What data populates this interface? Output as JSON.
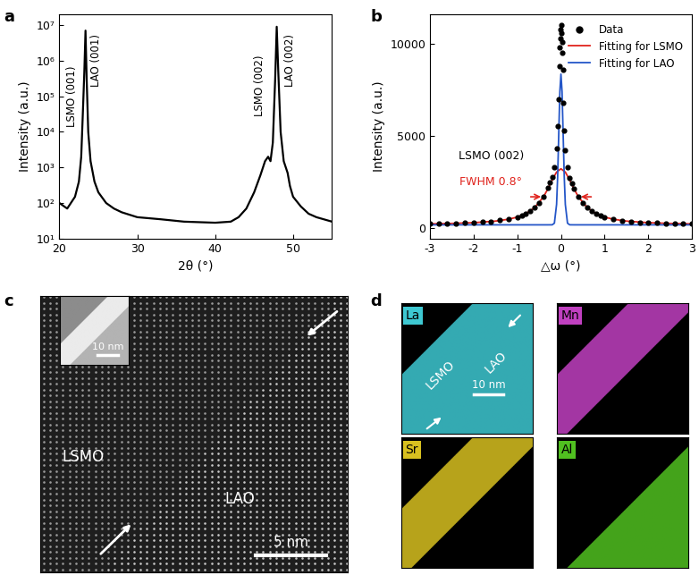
{
  "chart_data": [
    {
      "title": "a",
      "type": "line",
      "color": "#000000",
      "x_label": "2θ (°)",
      "y_label": "Intensity (a.u.)",
      "log": "y",
      "x": [
        20,
        21,
        22,
        22.5,
        22.8,
        23.0,
        23.2,
        23.35,
        23.5,
        23.7,
        24,
        24.5,
        25,
        26,
        27,
        28,
        30,
        33,
        36,
        40,
        42,
        43,
        44,
        45,
        45.8,
        46.4,
        46.8,
        47.1,
        47.4,
        47.7,
        47.9,
        48.1,
        48.4,
        48.8,
        49.3,
        49.6,
        50,
        51,
        52,
        53,
        55
      ],
      "values": [
        100,
        70,
        150,
        400,
        2000,
        30000,
        500000,
        7000000,
        300000,
        10000,
        1500,
        400,
        200,
        100,
        70,
        55,
        40,
        35,
        30,
        28,
        30,
        40,
        70,
        200,
        600,
        1500,
        2000,
        1500,
        5000,
        300000,
        9000000,
        500000,
        10000,
        1500,
        700,
        300,
        150,
        80,
        50,
        40,
        30
      ],
      "xlim": [
        20,
        55
      ],
      "xticks": [
        20,
        30,
        40,
        50
      ],
      "ylim": [
        10,
        20000000
      ],
      "yticks": [
        {
          "value": 10,
          "label": "10¹"
        },
        {
          "value": 100,
          "label": "10²"
        },
        {
          "value": 1000,
          "label": "10³"
        },
        {
          "value": 10000,
          "label": "10⁴"
        },
        {
          "value": 100000,
          "label": "10⁵"
        },
        {
          "value": 1000000,
          "label": "10⁶"
        },
        {
          "value": 10000000,
          "label": "10⁷"
        }
      ],
      "annotations": [
        {
          "text": "LSMO (001)",
          "x": 21.6,
          "y": 100000
        },
        {
          "text": "LAO (001)",
          "x": 24.7,
          "y": 1000000
        },
        {
          "text": "LSMO (002)",
          "x": 45.7,
          "y": 200000
        },
        {
          "text": "LAO (002)",
          "x": 49.6,
          "y": 1000000
        }
      ]
    },
    {
      "title": "b",
      "type": "scatter",
      "x_label": "△ω (°)",
      "y_label": "Intensity (a.u.)",
      "legend": "upper right",
      "xlim": [
        -3,
        3
      ],
      "xticks": [
        -3,
        -2,
        -1,
        0,
        1,
        2,
        3
      ],
      "ylim": [
        -600,
        11600
      ],
      "yticks": [
        0,
        5000,
        10000
      ],
      "series": [
        {
          "name": "Data",
          "type": "scatter",
          "color": "#000000",
          "marker": "o",
          "x": [
            -3,
            -2.8,
            -2.6,
            -2.4,
            -2.2,
            -2.0,
            -1.8,
            -1.6,
            -1.4,
            -1.2,
            -1.0,
            -0.9,
            -0.8,
            -0.7,
            -0.6,
            -0.5,
            -0.4,
            -0.3,
            -0.25,
            -0.2,
            -0.15,
            -0.1,
            -0.08,
            -0.06,
            -0.04,
            -0.03,
            -0.02,
            -0.01,
            0,
            0.01,
            0.02,
            0.03,
            0.04,
            0.06,
            0.08,
            0.1,
            0.15,
            0.2,
            0.25,
            0.3,
            0.4,
            0.5,
            0.6,
            0.7,
            0.8,
            0.9,
            1.0,
            1.2,
            1.4,
            1.6,
            1.8,
            2.0,
            2.2,
            2.4,
            2.6,
            2.8,
            3.0
          ],
          "values": [
            200,
            210,
            220,
            235,
            250,
            270,
            300,
            340,
            390,
            460,
            580,
            660,
            760,
            900,
            1090,
            1350,
            1700,
            2150,
            2450,
            2750,
            3300,
            4300,
            5500,
            7000,
            8800,
            9800,
            10300,
            10800,
            11000,
            10600,
            10100,
            9500,
            8600,
            6800,
            5300,
            4200,
            3300,
            2700,
            2400,
            2100,
            1680,
            1330,
            1080,
            890,
            750,
            650,
            570,
            450,
            380,
            330,
            290,
            265,
            245,
            228,
            215,
            205,
            198
          ]
        },
        {
          "name": "Fitting for LSMO",
          "type": "line",
          "color": "#e0231c",
          "line_style": "solid",
          "x": [
            -3,
            -2.5,
            -2,
            -1.5,
            -1.2,
            -1,
            -0.8,
            -0.6,
            -0.4,
            -0.3,
            -0.2,
            -0.1,
            0,
            0.1,
            0.2,
            0.3,
            0.4,
            0.6,
            0.8,
            1,
            1.2,
            1.5,
            2,
            2.5,
            3
          ],
          "values": [
            203,
            226,
            267,
            353,
            455,
            571,
            760,
            1088,
            1675,
            2102,
            2590,
            3020,
            3200,
            3020,
            2590,
            2102,
            1675,
            1088,
            760,
            571,
            455,
            353,
            267,
            226,
            203
          ]
        },
        {
          "name": "Fitting for LAO",
          "type": "line",
          "color": "#2456c8",
          "line_style": "solid",
          "x": [
            -3,
            -0.3,
            -0.2,
            -0.15,
            -0.1,
            -0.075,
            -0.05,
            -0.025,
            0,
            0.025,
            0.05,
            0.075,
            0.1,
            0.15,
            0.2,
            0.3,
            3
          ],
          "values": [
            150,
            150,
            152,
            241,
            1260,
            2810,
            5123,
            7400,
            8350,
            7400,
            5123,
            2810,
            1260,
            241,
            152,
            150,
            150
          ]
        }
      ],
      "annotations": [
        {
          "text": "LSMO (002)",
          "x": -1.6,
          "y": 3900,
          "color": "#000000"
        },
        {
          "text": "FWHM 0.8°",
          "x": -1.6,
          "y": 2500,
          "color": "#e0231c"
        }
      ],
      "fwhm_marks": {
        "x": [
          -0.4,
          0.4
        ],
        "y": 1675,
        "color": "#e0231c"
      }
    }
  ],
  "images": {
    "c": {
      "title": "c",
      "labels": [
        "LSMO",
        "LAO"
      ],
      "scale_bar": "5 nm",
      "inset_scale_bar": "10 nm"
    },
    "d": {
      "title": "d",
      "labels": [
        "LSMO",
        "LAO"
      ],
      "scale_bar": "10 nm",
      "maps": [
        {
          "element": "La",
          "color": "#3ec8d2"
        },
        {
          "element": "Mn",
          "color": "#c040c0"
        },
        {
          "element": "Sr",
          "color": "#d8c020"
        },
        {
          "element": "Al",
          "color": "#50c020"
        }
      ]
    }
  }
}
